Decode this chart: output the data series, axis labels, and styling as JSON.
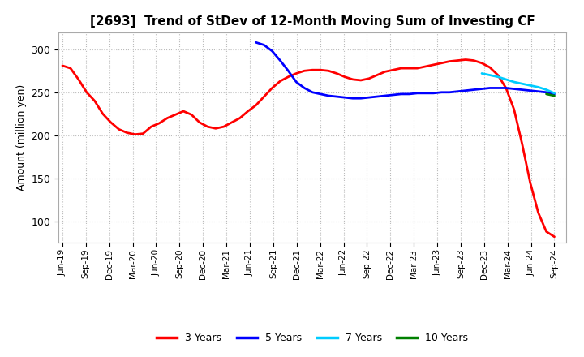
{
  "title": "[2693]  Trend of StDev of 12-Month Moving Sum of Investing CF",
  "ylabel": "Amount (million yen)",
  "ylim": [
    75,
    320
  ],
  "yticks": [
    100,
    150,
    200,
    250,
    300
  ],
  "background_color": "#ffffff",
  "grid_color": "#bbbbbb",
  "series": {
    "3years": {
      "color": "#ff0000",
      "label": "3 Years",
      "x": [
        0,
        1,
        2,
        3,
        4,
        5,
        6,
        7,
        8,
        9,
        10,
        11,
        12,
        13,
        14,
        15,
        16,
        17,
        18,
        19,
        20,
        21,
        22,
        23,
        24,
        25,
        26,
        27,
        28,
        29,
        30,
        31,
        32,
        33,
        34,
        35,
        36,
        37,
        38,
        39,
        40,
        41,
        42,
        43,
        44,
        45,
        46,
        47,
        48,
        49,
        50,
        51,
        52,
        53,
        54,
        55,
        56,
        57,
        58,
        59,
        60,
        61
      ],
      "y": [
        281,
        278,
        265,
        250,
        240,
        225,
        215,
        207,
        203,
        201,
        202,
        210,
        214,
        220,
        224,
        228,
        224,
        215,
        210,
        208,
        210,
        215,
        220,
        228,
        235,
        245,
        255,
        263,
        268,
        272,
        275,
        276,
        276,
        275,
        272,
        268,
        265,
        264,
        266,
        270,
        274,
        276,
        278,
        278,
        278,
        280,
        282,
        284,
        286,
        287,
        288,
        287,
        284,
        279,
        270,
        255,
        230,
        190,
        145,
        110,
        88,
        82
      ]
    },
    "5years": {
      "color": "#0000ff",
      "label": "5 Years",
      "x": [
        24,
        25,
        26,
        27,
        28,
        29,
        30,
        31,
        32,
        33,
        34,
        35,
        36,
        37,
        38,
        39,
        40,
        41,
        42,
        43,
        44,
        45,
        46,
        47,
        48,
        49,
        50,
        51,
        52,
        53,
        54,
        55,
        56,
        57,
        58,
        59,
        60,
        61
      ],
      "y": [
        308,
        305,
        298,
        287,
        275,
        262,
        255,
        250,
        248,
        246,
        245,
        244,
        243,
        243,
        244,
        245,
        246,
        247,
        248,
        248,
        249,
        249,
        249,
        250,
        250,
        251,
        252,
        253,
        254,
        255,
        255,
        255,
        254,
        253,
        252,
        251,
        250,
        248
      ]
    },
    "7years": {
      "color": "#00ccff",
      "label": "7 Years",
      "x": [
        52,
        53,
        54,
        55,
        56,
        57,
        58,
        59,
        60,
        61
      ],
      "y": [
        272,
        270,
        268,
        265,
        262,
        260,
        258,
        256,
        253,
        249
      ]
    },
    "10years": {
      "color": "#008000",
      "label": "10 Years",
      "x": [
        60,
        61
      ],
      "y": [
        248,
        246
      ]
    }
  },
  "xtick_labels": [
    "Jun-19",
    "Sep-19",
    "Dec-19",
    "Mar-20",
    "Jun-20",
    "Sep-20",
    "Dec-20",
    "Mar-21",
    "Jun-21",
    "Sep-21",
    "Dec-21",
    "Mar-22",
    "Jun-22",
    "Sep-22",
    "Dec-22",
    "Mar-23",
    "Jun-23",
    "Sep-23",
    "Dec-23",
    "Mar-24",
    "Jun-24",
    "Sep-24"
  ],
  "legend_colors": [
    "#ff0000",
    "#0000ff",
    "#00ccff",
    "#008000"
  ],
  "legend_labels": [
    "3 Years",
    "5 Years",
    "7 Years",
    "10 Years"
  ]
}
